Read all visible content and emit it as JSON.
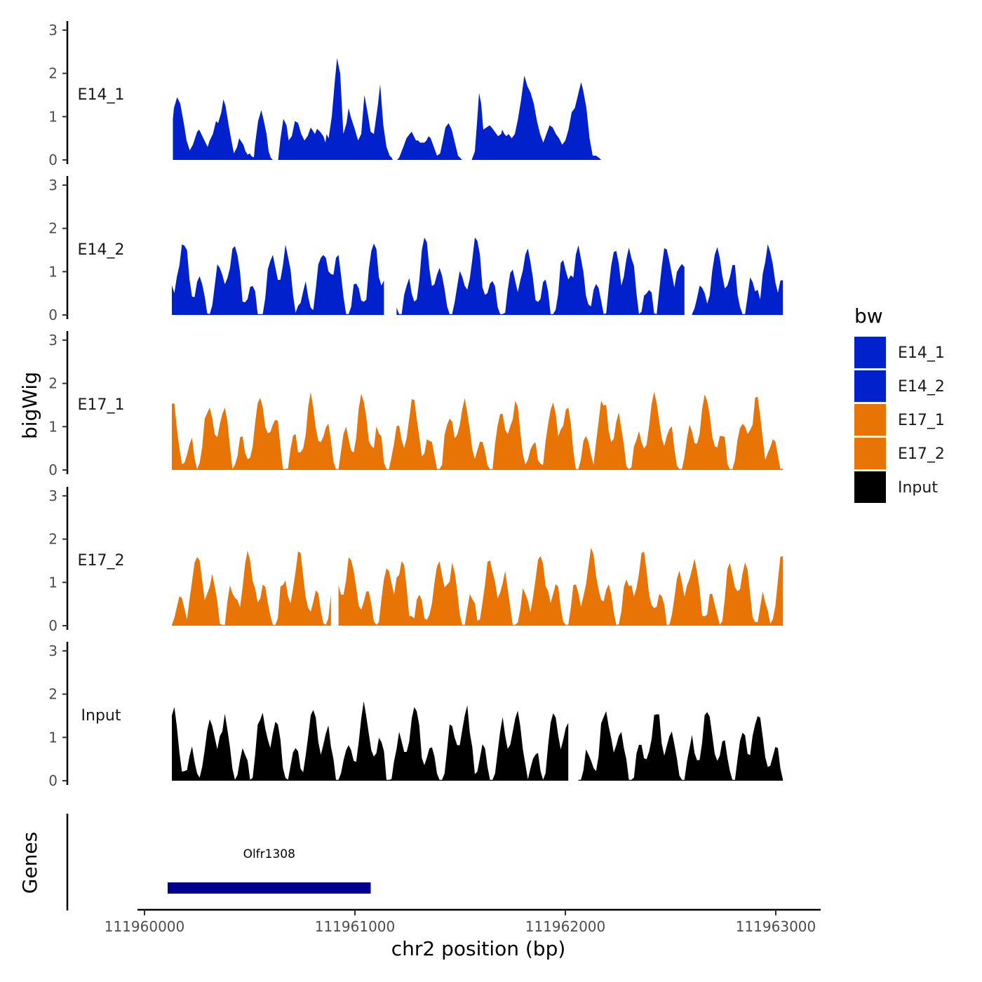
{
  "chart_data": {
    "type": "area",
    "title": "",
    "ylabel": "bigWig",
    "xlabel": "chr2 position (bp)",
    "gene_track_label": "Genes",
    "xlim": [
      111959970,
      111963200
    ],
    "ylim": [
      0,
      3.05
    ],
    "y_ticks": [
      "0",
      "1",
      "2",
      "3"
    ],
    "x_ticks": [
      {
        "value": 111960000,
        "label": "111960000"
      },
      {
        "value": 111961000,
        "label": "111961000"
      },
      {
        "value": 111962000,
        "label": "111962000"
      },
      {
        "value": 111963000,
        "label": "111963000"
      }
    ],
    "legend": {
      "title": "bw",
      "position": "right"
    },
    "series": [
      {
        "name": "E14_1",
        "color": "#0021cc",
        "x": [
          111960135,
          111960140,
          111960155,
          111960170,
          111960185,
          111960200,
          111960215,
          111960230,
          111960250,
          111960260,
          111960275,
          111960290,
          111960300,
          111960310,
          111960325,
          111960340,
          111960350,
          111960365,
          111960375,
          111960385,
          111960400,
          111960415,
          111960425,
          111960440,
          111960450,
          111960470,
          111960480,
          111960490,
          111960500,
          111960510,
          111960520,
          111960525,
          111960540,
          111960555,
          111960565,
          111960580,
          111960590,
          111960600,
          111960610,
          111960620,
          111960635,
          111960645,
          111960660,
          111960675,
          111960685,
          111960700,
          111960715,
          111960730,
          111960745,
          111960760,
          111960775,
          111960790,
          111960810,
          111960820,
          111960835,
          111960850,
          111960860,
          111960865,
          111960875,
          111960890,
          111960905,
          111960915,
          111960930,
          111960945,
          111960960,
          111960970,
          111960980,
          111961000,
          111961015,
          111961030,
          111961045,
          111961060,
          111961075,
          111961090,
          111961110,
          111961120,
          111961135,
          111961150,
          111961165,
          111961175,
          111961180,
          111961190,
          111961200,
          111961210,
          111961230,
          111961245,
          111961260,
          111961270,
          111961280,
          111961290,
          111961300,
          111961310,
          111961320,
          111961330,
          111961340,
          111961350,
          111961360,
          111961375,
          111961390,
          111961405,
          111961420,
          111961430,
          111961445,
          111961460,
          111961475,
          111961490,
          111961500,
          111961510,
          111961525,
          111961540,
          111961555,
          111961570,
          111961580,
          111961590,
          111961600,
          111961610,
          111961625,
          111961640,
          111961650,
          111961665,
          111961680,
          111961695,
          111961700,
          111961710,
          111961720,
          111961730,
          111961745,
          111961760,
          111961775,
          111961790,
          111961805,
          111961820,
          111961835,
          111961850,
          111961865,
          111961880,
          111961895,
          111961910,
          111961925,
          111961940,
          111961955,
          111961970,
          111961985,
          111962000,
          111962015,
          111962030,
          111962045,
          111962060,
          111962075,
          111962085,
          111962100,
          111962115,
          111962130,
          111962145,
          111962160,
          111962170,
          111962180,
          111962190,
          111962200,
          111962220,
          111962240,
          111962250,
          111962260,
          111962270,
          111962280,
          111962290,
          111962300,
          111962315,
          111962330,
          111962345,
          111962360,
          111962375,
          111962390,
          111962405,
          111962420,
          111962435,
          111962450,
          111962465,
          111962480,
          111962495,
          111962510,
          111962525,
          111962540,
          111962555,
          111962570,
          111962590,
          111962610,
          111962630,
          111962640,
          111962655,
          111962670,
          111962690,
          111962705,
          111962720,
          111962735,
          111962750,
          111962765,
          111962780,
          111962795,
          111962810,
          111962825,
          111962840,
          111962850,
          111962860,
          111962870,
          111962885,
          111962900,
          111962910,
          111962920,
          111962935,
          111962950,
          111962965,
          111962980,
          111962990,
          111963000,
          111963010,
          111963020,
          111963030,
          111963045,
          111963055
        ],
        "y": [
          0.95,
          1.2,
          1.45,
          1.3,
          0.9,
          0.45,
          0.22,
          0.35,
          0.65,
          0.7,
          0.55,
          0.4,
          0.3,
          0.45,
          0.6,
          0.9,
          0.85,
          1.1,
          1.4,
          1.25,
          0.8,
          0.4,
          0.15,
          0.3,
          0.5,
          0.35,
          0.2,
          0.12,
          0.15,
          0.08,
          0.06,
          0.35,
          0.9,
          1.15,
          0.95,
          0.6,
          0.2,
          0.05,
          0.0,
          0.0,
          0.0,
          0.45,
          0.95,
          0.8,
          0.45,
          0.55,
          0.9,
          0.85,
          0.6,
          0.45,
          0.55,
          0.75,
          0.6,
          0.72,
          0.65,
          0.55,
          0.4,
          0.6,
          0.5,
          1.0,
          1.85,
          2.35,
          2.0,
          0.6,
          0.85,
          1.2,
          1.0,
          0.7,
          0.45,
          0.6,
          1.5,
          1.1,
          0.65,
          0.6,
          1.3,
          1.75,
          0.8,
          0.3,
          0.1,
          0.05,
          0.0,
          0.0,
          0.0,
          0.05,
          0.3,
          0.5,
          0.6,
          0.65,
          0.55,
          0.45,
          0.45,
          0.4,
          0.4,
          0.4,
          0.45,
          0.55,
          0.5,
          0.3,
          0.1,
          0.15,
          0.5,
          0.75,
          0.85,
          0.7,
          0.4,
          0.1,
          0.05,
          0.0,
          0.0,
          0.0,
          0.0,
          0.2,
          0.85,
          1.55,
          1.3,
          0.7,
          0.75,
          0.8,
          0.75,
          0.65,
          0.55,
          0.6,
          0.7,
          0.6,
          0.55,
          0.6,
          0.5,
          0.6,
          0.95,
          1.4,
          1.95,
          1.7,
          1.55,
          1.3,
          0.9,
          0.6,
          0.4,
          0.6,
          0.8,
          0.75,
          0.6,
          0.5,
          0.35,
          0.45,
          0.7,
          1.1,
          1.2,
          1.5,
          1.8,
          1.6,
          1.2,
          0.5,
          0.1,
          0.1,
          0.05,
          0.0,
          0.0,
          0.0,
          0.0,
          0.0,
          0.0,
          0.0,
          0.0,
          0.0,
          0.0,
          0.0,
          0.0,
          0.0,
          0.0,
          0.0,
          0.0,
          0.0,
          0.0,
          0.0,
          0.0,
          0.0,
          0.0,
          0.0,
          0.0,
          0.0,
          0.0,
          0.0,
          0.0,
          0.0,
          0.0,
          0.0,
          0.0,
          0.0,
          0.0,
          0.0,
          0.0,
          0.0,
          0.0,
          0.0,
          0.0,
          0.0,
          0.0,
          0.0,
          0.0,
          0.0,
          0.0,
          0.0,
          0.0,
          0.0,
          0.0,
          0.0,
          0.0,
          0.0,
          0.0,
          0.0,
          0.0,
          0.0,
          0.0,
          0.0,
          0.0,
          0.0,
          0.0,
          0.0,
          0.0,
          0.0
        ]
      },
      {
        "name": "E14_2",
        "color": "#0021cc",
        "x": [],
        "y": []
      },
      {
        "name": "E17_1",
        "color": "#e87406",
        "x": [],
        "y": []
      },
      {
        "name": "E17_2",
        "color": "#e87406",
        "x": [],
        "y": []
      },
      {
        "name": "Input",
        "color": "#000000",
        "x": [],
        "y": []
      }
    ],
    "genes": [
      {
        "name": "Olfr1308",
        "start": 111960110,
        "end": 111961075,
        "color": "#00008b"
      }
    ]
  }
}
